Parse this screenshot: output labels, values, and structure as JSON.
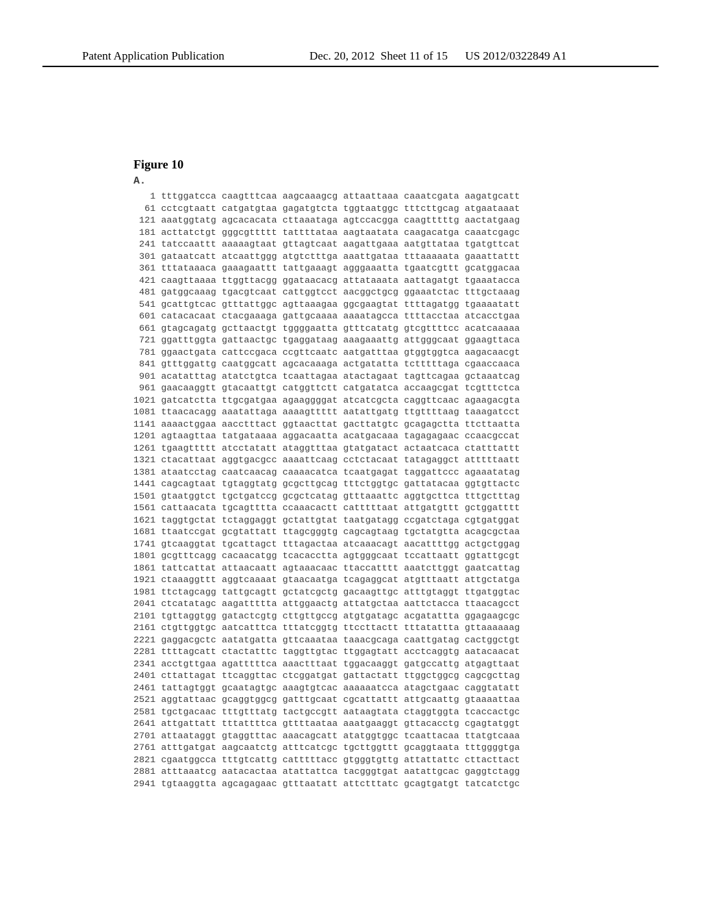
{
  "header": {
    "left": "Patent Application Publication",
    "date": "Dec. 20, 2012",
    "sheet": "Sheet 11 of 15",
    "pubno": "US 2012/0322849 A1"
  },
  "figure": {
    "title": "Figure 10",
    "panel": "A.",
    "font_family": "Courier New",
    "sequence_fontsize": 13.2,
    "sequence_lineheight": 17.5,
    "sequence_color": "#3a3a3a",
    "background_color": "#ffffff",
    "rows": [
      {
        "pos": "1",
        "seq": "tttggatcca caagtttcaa aagcaaagcg attaattaaa caaatcgata aagatgcatt"
      },
      {
        "pos": "61",
        "seq": "cctcgtaatt catgatgtaa gagatgtcta tggtaatggc tttcttgcag atgaataaat"
      },
      {
        "pos": "121",
        "seq": "aaatggtatg agcacacata cttaaataga agtccacgga caagtttttg aactatgaag"
      },
      {
        "pos": "181",
        "seq": "acttatctgt gggcgttttt tattttataa aagtaatata caagacatga caaatcgagc"
      },
      {
        "pos": "241",
        "seq": "tatccaattt aaaaagtaat gttagtcaat aagattgaaa aatgttataa tgatgttcat"
      },
      {
        "pos": "301",
        "seq": "gataatcatt atcaattggg atgtctttga aaattgataa tttaaaaata gaaattattt"
      },
      {
        "pos": "361",
        "seq": "tttataaaca gaaagaattt tattgaaagt agggaaatta tgaatcgttt gcatggacaa"
      },
      {
        "pos": "421",
        "seq": "caagttaaaa ttggttacgg ggataacacg attataaata aattagatgt tgaaatacca"
      },
      {
        "pos": "481",
        "seq": "gatggcaaag tgacgtcaat cattggtcct aacggctgcg ggaaatctac tttgctaaag"
      },
      {
        "pos": "541",
        "seq": "gcattgtcac gtttattggc agttaaagaa ggcgaagtat ttttagatgg tgaaaatatt"
      },
      {
        "pos": "601",
        "seq": "catacacaat ctacgaaaga gattgcaaaa aaaatagcca ttttacctaa atcacctgaa"
      },
      {
        "pos": "661",
        "seq": "gtagcagatg gcttaactgt tggggaatta gtttcatatg gtcgttttcc acatcaaaaa"
      },
      {
        "pos": "721",
        "seq": "ggatttggta gattaactgc tgaggataag aaagaaattg attgggcaat ggaagttaca"
      },
      {
        "pos": "781",
        "seq": "ggaactgata cattccgaca ccgttcaatc aatgatttaa gtggtggtca aagacaacgt"
      },
      {
        "pos": "841",
        "seq": "gtttggattg caatggcatt agcacaaaga actgatatta tctttttaga cgaaccaaca"
      },
      {
        "pos": "901",
        "seq": "acatatttag atatctgtca tcaattagaa atactagaat tagttcagaa gctaaatcag"
      },
      {
        "pos": "961",
        "seq": "gaacaaggtt gtacaattgt catggttctt catgatatca accaagcgat tcgtttctca"
      },
      {
        "pos": "1021",
        "seq": "gatcatctta ttgcgatgaa agaaggggat atcatcgcta caggttcaac agaagacgta"
      },
      {
        "pos": "1081",
        "seq": "ttaacacagg aaatattaga aaaagttttt aatattgatg ttgttttaag taaagatcct"
      },
      {
        "pos": "1141",
        "seq": "aaaactggaa aacctttact ggtaacttat gacttatgtc gcagagctta ttcttaatta"
      },
      {
        "pos": "1201",
        "seq": "agtaagttaa tatgataaaa aggacaatta acatgacaaa tagagagaac ccaacgccat"
      },
      {
        "pos": "1261",
        "seq": "tgaagttttt atcctatatt ataggtttaa gtatgatact actaatcaca ctatttattt"
      },
      {
        "pos": "1321",
        "seq": "ctacattaat aggtgacgcc aaaattcaag cctctacaat tatagaggct atttttaatt"
      },
      {
        "pos": "1381",
        "seq": "ataatcctag caatcaacag caaaacatca tcaatgagat taggattccc agaaatatag"
      },
      {
        "pos": "1441",
        "seq": "cagcagtaat tgtaggtatg gcgcttgcag tttctggtgc gattatacaa ggtgttactc"
      },
      {
        "pos": "1501",
        "seq": "gtaatggtct tgctgatccg gcgctcatag gtttaaattc aggtgcttca tttgctttag"
      },
      {
        "pos": "1561",
        "seq": "cattaacata tgcagtttta ccaaacactt catttttaat attgatgttt gctggatttt"
      },
      {
        "pos": "1621",
        "seq": "taggtgctat tctaggaggt gctattgtat taatgatagg ccgatctaga cgtgatggat"
      },
      {
        "pos": "1681",
        "seq": "ttaatccgat gcgtattatt ttagcgggtg cagcagtaag tgctatgtta acagcgctaa"
      },
      {
        "pos": "1741",
        "seq": "gtcaaggtat tgcattagct tttagactaa atcaaacagt aacattttgg actgctggag"
      },
      {
        "pos": "1801",
        "seq": "gcgtttcagg cacaacatgg tcacacctta agtgggcaat tccattaatt ggtattgcgt"
      },
      {
        "pos": "1861",
        "seq": "tattcattat attaacaatt agtaaacaac ttaccatttt aaatcttggt gaatcattag"
      },
      {
        "pos": "1921",
        "seq": "ctaaaggttt aggtcaaaat gtaacaatga tcagaggcat atgtttaatt attgctatga"
      },
      {
        "pos": "1981",
        "seq": "ttctagcagg tattgcagtt gctatcgctg gacaagttgc atttgtaggt ttgatggtac"
      },
      {
        "pos": "2041",
        "seq": "ctcatatagc aagattttta attggaactg attatgctaa aattctacca ttaacagcct"
      },
      {
        "pos": "2101",
        "seq": "tgttaggtgg gatactcgtg cttgttgccg atgtgatagc acgatattta ggagaagcgc"
      },
      {
        "pos": "2161",
        "seq": "ctgttggtgc aatcatttca tttatcggtg ttccttactt tttatattta gttaaaaaag"
      },
      {
        "pos": "2221",
        "seq": "gaggacgctc aatatgatta gttcaaataa taaacgcaga caattgatag cactggctgt"
      },
      {
        "pos": "2281",
        "seq": "ttttagcatt ctactatttc taggttgtac ttggagtatt acctcaggtg aatacaacat"
      },
      {
        "pos": "2341",
        "seq": "acctgttgaa agatttttca aaactttaat tggacaaggt gatgccattg atgagttaat"
      },
      {
        "pos": "2401",
        "seq": "cttattagat ttcaggttac ctcggatgat gattactatt ttggctggcg cagcgcttag"
      },
      {
        "pos": "2461",
        "seq": "tattagtggt gcaatagtgc aaagtgtcac aaaaaatcca atagctgaac caggtatatt"
      },
      {
        "pos": "2521",
        "seq": "aggtattaac gcaggtggcg gatttgcaat cgcattattt attgcaattg gtaaaattaa"
      },
      {
        "pos": "2581",
        "seq": "tgctgacaac tttgtttatg tactgccgtt aataagtata ctaggtggta tcaccactgc"
      },
      {
        "pos": "2641",
        "seq": "attgattatt tttattttca gttttaataa aaatgaaggt gttacacctg cgagtatggt"
      },
      {
        "pos": "2701",
        "seq": "attaataggt gtaggtttac aaacagcatt atatggtggc tcaattacaa ttatgtcaaa"
      },
      {
        "pos": "2761",
        "seq": "atttgatgat aagcaatctg atttcatcgc tgcttggttt gcaggtaata tttggggtga"
      },
      {
        "pos": "2821",
        "seq": "cgaatggcca tttgtcattg catttttacc gtgggtgttg attattattc cttacttact"
      },
      {
        "pos": "2881",
        "seq": "atttaaatcg aatacactaa atattattca tacgggtgat aatattgcac gaggtctagg"
      },
      {
        "pos": "2941",
        "seq": "tgtaaggtta agcagagaac gtttaatatt attctttatc gcagtgatgt tatcatctgc"
      }
    ]
  }
}
